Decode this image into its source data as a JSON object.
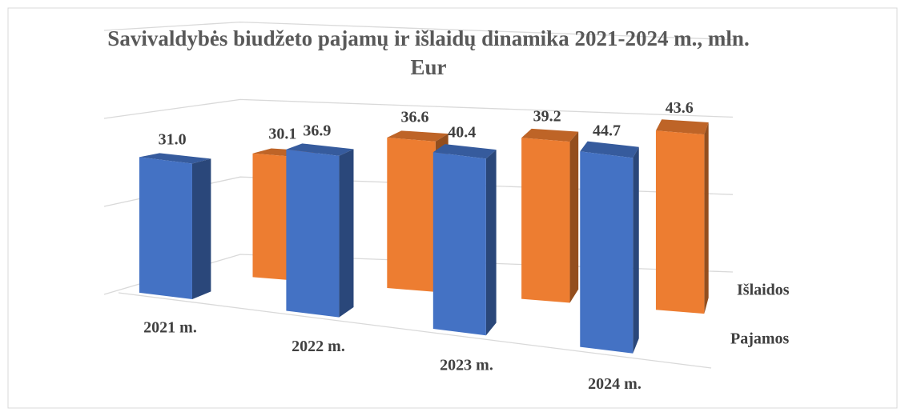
{
  "chart_data": {
    "type": "bar3d",
    "title": "Savivaldybės biudžeto pajamų ir išlaidų dinamika 2021-2024 m., mln. Eur",
    "categories": [
      "2021 m.",
      "2022 m.",
      "2023 m.",
      "2024 m."
    ],
    "series": [
      {
        "name": "Pajamos",
        "color": "#4472c4",
        "values": [
          31.0,
          36.9,
          40.4,
          44.7
        ],
        "value_labels": [
          "31.0",
          "36.9",
          "40.4",
          "44.7"
        ]
      },
      {
        "name": "Išlaidos",
        "color": "#ed7d31",
        "values": [
          30.1,
          36.6,
          39.2,
          43.6
        ],
        "value_labels": [
          "30.1",
          "36.6",
          "39.2",
          "43.6"
        ]
      }
    ],
    "ylim": [
      0,
      60
    ],
    "yticks": [
      0,
      20,
      40,
      60
    ],
    "grid": true
  }
}
